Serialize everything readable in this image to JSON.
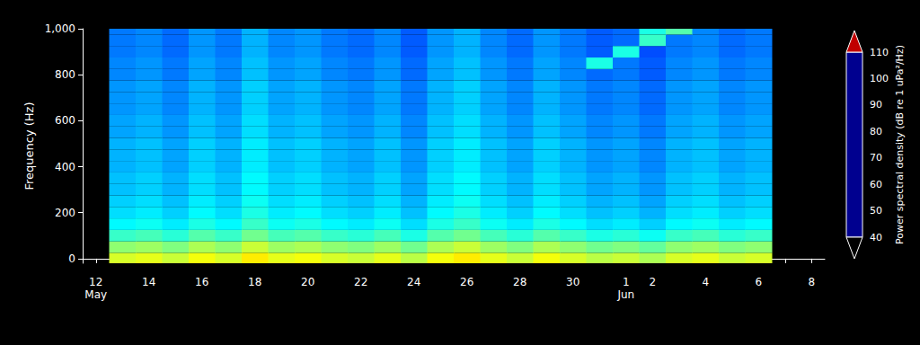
{
  "chart_data": {
    "type": "heatmap",
    "y_label": "Frequency (Hz)",
    "categories": [
      "12\nMay",
      null,
      "14",
      null,
      "16",
      null,
      "18",
      null,
      "20",
      null,
      "22",
      null,
      "24",
      null,
      "26",
      null,
      "28",
      null,
      "30",
      null,
      "1\nJun",
      "2",
      null,
      "4",
      null,
      "6",
      null,
      "8"
    ],
    "y": [
      0,
      50,
      100,
      150,
      200,
      250,
      300,
      350,
      400,
      450,
      500,
      550,
      600,
      650,
      700,
      750,
      800,
      850,
      900,
      950,
      1000
    ],
    "values": [
      [
        null,
        81,
        82,
        80,
        83,
        81,
        85,
        82,
        83,
        81,
        80,
        82,
        79,
        83,
        85,
        82,
        80,
        83,
        81,
        79,
        80,
        78,
        81,
        82,
        80,
        81,
        null,
        null
      ],
      [
        null,
        76,
        77,
        75,
        78,
        76,
        80,
        77,
        78,
        76,
        75,
        77,
        74,
        78,
        80,
        77,
        75,
        78,
        76,
        74,
        75,
        73,
        76,
        77,
        75,
        76,
        null,
        null
      ],
      [
        null,
        70,
        71,
        69,
        72,
        70,
        74,
        71,
        72,
        70,
        69,
        71,
        68,
        72,
        74,
        71,
        69,
        72,
        70,
        68,
        69,
        67,
        70,
        71,
        69,
        70,
        null,
        null
      ],
      [
        null,
        66,
        67,
        65,
        68,
        66,
        70,
        67,
        68,
        66,
        65,
        67,
        64,
        68,
        70,
        67,
        65,
        68,
        66,
        64,
        65,
        63,
        66,
        67,
        65,
        66,
        null,
        null
      ],
      [
        null,
        64,
        65,
        63,
        66,
        64,
        68,
        65,
        66,
        64,
        63,
        65,
        62,
        66,
        68,
        65,
        63,
        66,
        64,
        62,
        63,
        61,
        64,
        65,
        63,
        64,
        null,
        null
      ],
      [
        null,
        63,
        64,
        62,
        65,
        63,
        67,
        64,
        65,
        63,
        62,
        64,
        61,
        65,
        67,
        64,
        62,
        65,
        63,
        61,
        62,
        60,
        63,
        64,
        62,
        63,
        null,
        null
      ],
      [
        null,
        62,
        63,
        61,
        64,
        62,
        66,
        63,
        64,
        62,
        61,
        63,
        60,
        64,
        66,
        63,
        61,
        64,
        62,
        60,
        61,
        59,
        62,
        63,
        61,
        62,
        null,
        null
      ],
      [
        null,
        62,
        63,
        61,
        64,
        62,
        66,
        63,
        64,
        62,
        61,
        63,
        60,
        64,
        66,
        63,
        61,
        64,
        62,
        60,
        61,
        59,
        62,
        63,
        61,
        62,
        null,
        null
      ],
      [
        null,
        61,
        62,
        60,
        63,
        61,
        65,
        62,
        63,
        61,
        60,
        62,
        59,
        63,
        65,
        62,
        60,
        63,
        61,
        59,
        60,
        58,
        61,
        62,
        60,
        61,
        null,
        null
      ],
      [
        null,
        61,
        62,
        60,
        63,
        61,
        65,
        62,
        63,
        61,
        60,
        62,
        59,
        63,
        65,
        62,
        60,
        63,
        61,
        59,
        60,
        58,
        61,
        62,
        60,
        61,
        null,
        null
      ],
      [
        null,
        61,
        62,
        60,
        63,
        61,
        65,
        62,
        63,
        61,
        60,
        62,
        59,
        63,
        65,
        62,
        60,
        63,
        61,
        59,
        60,
        58,
        61,
        62,
        60,
        61,
        null,
        null
      ],
      [
        null,
        60,
        61,
        59,
        62,
        60,
        64,
        61,
        62,
        60,
        59,
        61,
        58,
        62,
        64,
        61,
        59,
        62,
        60,
        58,
        59,
        57,
        60,
        61,
        59,
        60,
        null,
        null
      ],
      [
        null,
        60,
        61,
        59,
        62,
        60,
        64,
        61,
        62,
        60,
        59,
        61,
        58,
        62,
        64,
        61,
        59,
        62,
        60,
        58,
        59,
        57,
        60,
        61,
        59,
        60,
        null,
        null
      ],
      [
        null,
        59,
        60,
        58,
        61,
        59,
        63,
        60,
        61,
        59,
        58,
        60,
        57,
        61,
        63,
        60,
        58,
        61,
        59,
        57,
        58,
        56,
        59,
        60,
        58,
        59,
        null,
        null
      ],
      [
        null,
        59,
        60,
        58,
        61,
        59,
        63,
        60,
        61,
        59,
        58,
        60,
        57,
        61,
        63,
        60,
        58,
        61,
        59,
        57,
        58,
        56,
        59,
        60,
        58,
        59,
        null,
        null
      ],
      [
        null,
        59,
        60,
        58,
        61,
        59,
        63,
        60,
        61,
        59,
        58,
        60,
        57,
        61,
        63,
        60,
        58,
        61,
        59,
        57,
        58,
        56,
        59,
        60,
        58,
        59,
        null,
        null
      ],
      [
        null,
        58,
        59,
        57,
        60,
        58,
        62,
        59,
        60,
        58,
        57,
        59,
        56,
        60,
        62,
        59,
        57,
        60,
        58,
        56,
        57,
        55,
        58,
        59,
        57,
        58,
        null,
        null
      ],
      [
        null,
        58,
        59,
        57,
        60,
        58,
        62,
        59,
        60,
        58,
        57,
        59,
        56,
        60,
        62,
        59,
        57,
        60,
        58,
        68,
        57,
        55,
        58,
        59,
        57,
        58,
        null,
        null
      ],
      [
        null,
        57,
        58,
        56,
        59,
        57,
        61,
        58,
        59,
        57,
        56,
        58,
        55,
        59,
        61,
        58,
        56,
        59,
        57,
        55,
        68,
        54,
        57,
        58,
        56,
        57,
        null,
        null
      ],
      [
        null,
        57,
        58,
        56,
        59,
        57,
        61,
        58,
        59,
        57,
        56,
        58,
        55,
        59,
        61,
        58,
        56,
        59,
        57,
        55,
        56,
        70,
        57,
        58,
        56,
        57,
        null,
        null
      ],
      [
        null,
        57,
        58,
        56,
        59,
        57,
        61,
        58,
        59,
        57,
        56,
        58,
        55,
        59,
        61,
        58,
        56,
        59,
        57,
        55,
        56,
        68,
        72,
        58,
        56,
        57,
        null,
        null
      ]
    ],
    "ylim": [
      -20,
      1000
    ],
    "yticks": [
      0,
      200,
      400,
      600,
      800,
      1000
    ],
    "colorbar": {
      "label": "Power spectral density (dB re 1 uPa²/Hz)",
      "range": [
        40,
        110
      ],
      "ticks": [
        40,
        50,
        60,
        70,
        80,
        90,
        100,
        110
      ]
    }
  }
}
